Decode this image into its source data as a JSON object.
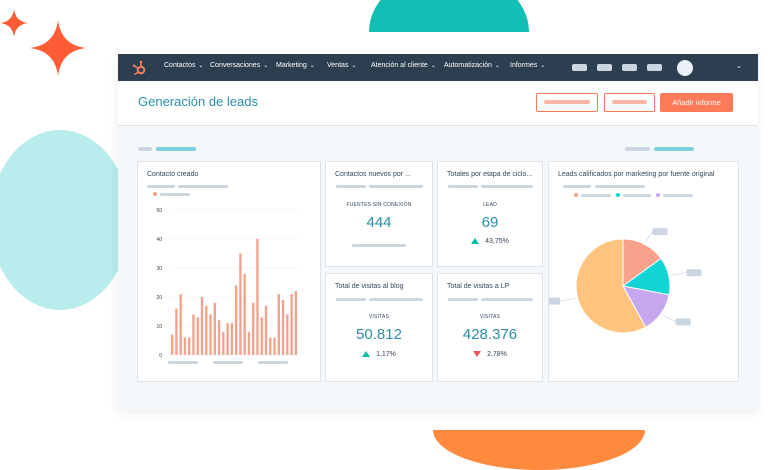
{
  "nav": {
    "items": [
      {
        "label": "Contactos",
        "chevron": "⌄"
      },
      {
        "label": "Conversaciones",
        "chevron": "⌄"
      },
      {
        "label": "Marketing",
        "chevron": "⌄"
      },
      {
        "label": "Ventas",
        "chevron": "⌄"
      },
      {
        "label": "Atención al cliente",
        "chevron": "⌄"
      },
      {
        "label": "Automatización",
        "chevron": "⌄"
      },
      {
        "label": "Informes",
        "chevron": "⌄"
      }
    ],
    "account_chevron": "⌄",
    "logo_icon": "hubspot-sprocket-icon"
  },
  "header": {
    "title": "Generación de leads",
    "primary_button": "Añadir informe"
  },
  "colors": {
    "accent": "#ff7a59",
    "teal": "#00bda5",
    "value_text": "#2a8fa8",
    "nav_bg": "#2d3e50",
    "negative": "#f2545b"
  },
  "cards": {
    "contacts_created": {
      "title": "Contacto creado"
    },
    "new_contacts": {
      "title": "Contactos nuevos por ...",
      "label": "FUENTES SIN CONEXIÓN",
      "value": "444"
    },
    "lifecycle": {
      "title": "Totales por etapa de ciclo...",
      "label": "LEAD",
      "value": "69",
      "delta": "43,75%"
    },
    "blog_visits": {
      "title": "Total de visitas al blog",
      "label": "VISITAS",
      "value": "50.812",
      "delta": "1,17%"
    },
    "lp_visits": {
      "title": "Total de visitas a LP",
      "label": "VISITAS",
      "value": "428.376",
      "delta": "2,78%"
    },
    "mql": {
      "title": "Leads calificados por marketing por fuente original"
    }
  },
  "chart_data": [
    {
      "type": "bar",
      "title": "Contacto creado",
      "ylim": [
        0,
        50
      ],
      "yticks": [
        "0",
        "10",
        "20",
        "30",
        "40",
        "50"
      ],
      "values": [
        7,
        16,
        21,
        6,
        6,
        14,
        13,
        20,
        17,
        14,
        18,
        12,
        8,
        11,
        11,
        24,
        35,
        28,
        8,
        18,
        40,
        13,
        17,
        6,
        6,
        21,
        19,
        14,
        21,
        22
      ],
      "color": "#f2a28c"
    },
    {
      "type": "pie",
      "title": "Leads calificados por marketing por fuente original",
      "values": [
        0.15,
        0.13,
        0.14,
        0.58
      ],
      "colors": [
        "#f8a28b",
        "#13d4d4",
        "#c6a8f0",
        "#ffc47f"
      ]
    }
  ]
}
